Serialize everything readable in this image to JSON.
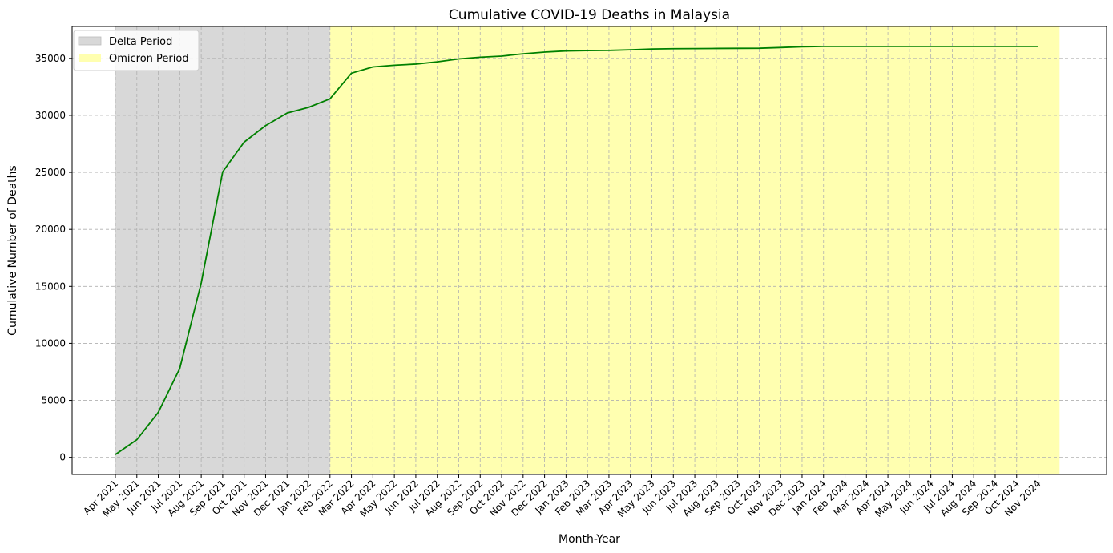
{
  "chart_data": {
    "type": "line",
    "title": "Cumulative COVID-19 Deaths in Malaysia",
    "xlabel": "Month-Year",
    "ylabel": "Cumulative Number of Deaths",
    "categories": [
      "Apr 2021",
      "May 2021",
      "Jun 2021",
      "Jul 2021",
      "Aug 2021",
      "Sep 2021",
      "Oct 2021",
      "Nov 2021",
      "Dec 2021",
      "Jan 2022",
      "Feb 2022",
      "Mar 2022",
      "Apr 2022",
      "May 2022",
      "Jun 2022",
      "Jul 2022",
      "Aug 2022",
      "Sep 2022",
      "Oct 2022",
      "Nov 2022",
      "Dec 2022",
      "Jan 2023",
      "Feb 2023",
      "Mar 2023",
      "Apr 2023",
      "May 2023",
      "Jun 2023",
      "Jul 2023",
      "Aug 2023",
      "Sep 2023",
      "Oct 2023",
      "Nov 2023",
      "Dec 2023",
      "Jan 2024",
      "Feb 2024",
      "Mar 2024",
      "Apr 2024",
      "May 2024",
      "Jun 2024",
      "Jul 2024",
      "Aug 2024",
      "Sep 2024",
      "Oct 2024",
      "Nov 2024"
    ],
    "series": [
      {
        "color": "#008000",
        "values": [
          250,
          1550,
          3950,
          7800,
          15300,
          25050,
          27650,
          29100,
          30200,
          30700,
          31450,
          33700,
          34250,
          34400,
          34500,
          34700,
          34950,
          35100,
          35200,
          35400,
          35550,
          35650,
          35680,
          35700,
          35750,
          35820,
          35850,
          35860,
          35870,
          35880,
          35890,
          35950,
          36020,
          36050,
          36050,
          36050,
          36050,
          36050,
          36050,
          36050,
          36050,
          36050,
          36050,
          36050
        ]
      }
    ],
    "ylim": [
      -1500,
      37800
    ],
    "yticks": [
      0,
      5000,
      10000,
      15000,
      20000,
      25000,
      30000,
      35000
    ],
    "grid": true,
    "legend": {
      "position": "top-left",
      "entries": [
        {
          "label": "Delta Period",
          "color": "#d8d8d8"
        },
        {
          "label": "Omicron Period",
          "color": "#ffffb0"
        }
      ]
    },
    "shaded_regions": [
      {
        "label": "Delta Period",
        "start": "Apr 2021",
        "end": "Feb 2022",
        "color": "#d8d8d8"
      },
      {
        "label": "Omicron Period",
        "start": "Feb 2022",
        "end": "Nov 2024",
        "end_offset": 1,
        "color": "#ffffb0"
      }
    ]
  }
}
